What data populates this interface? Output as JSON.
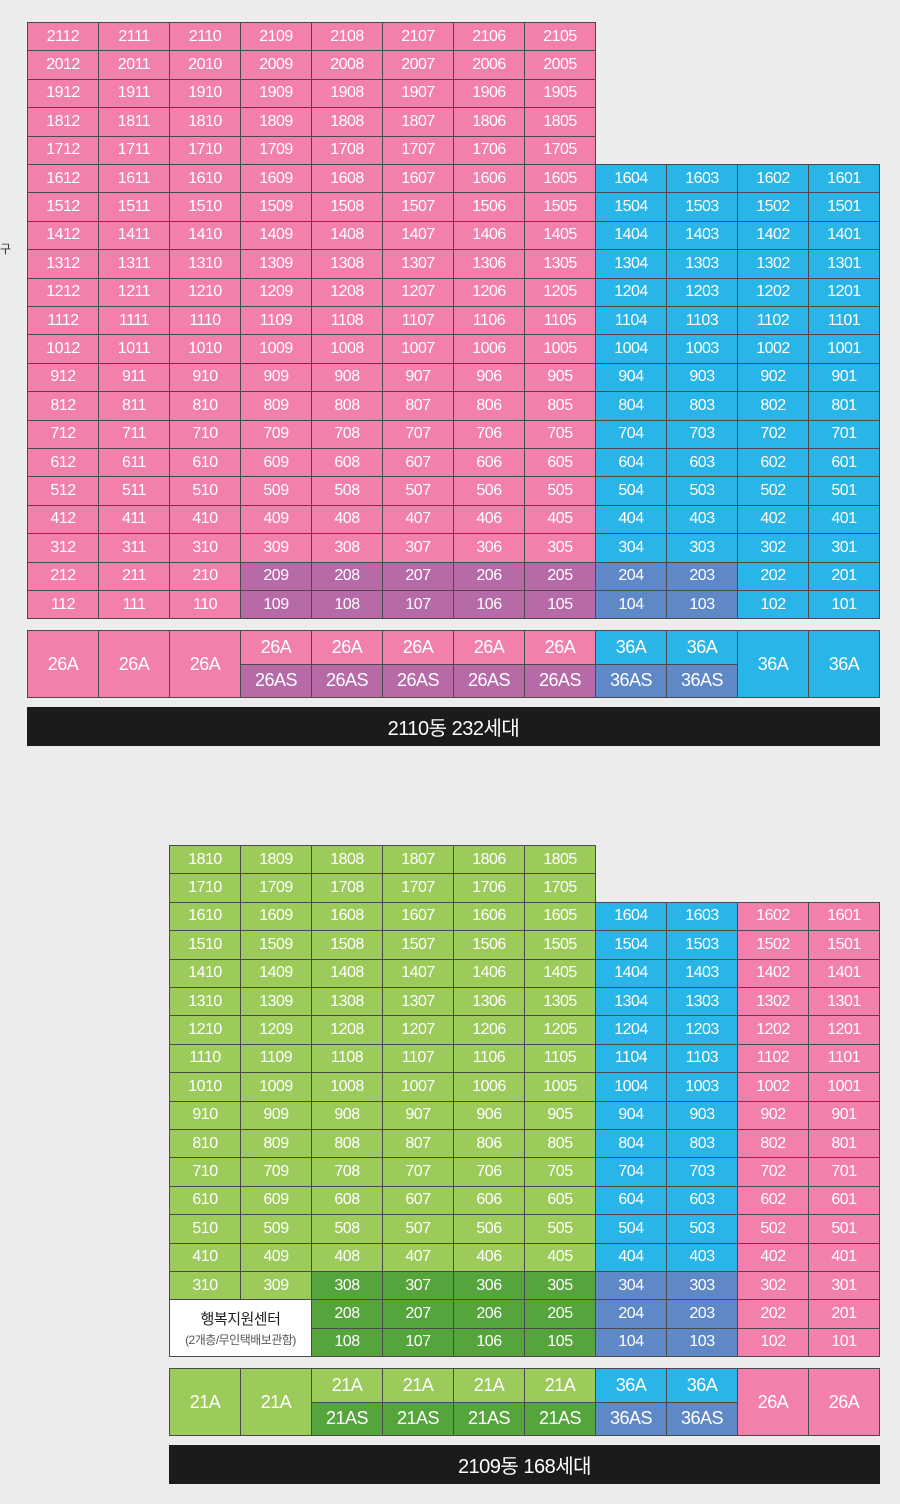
{
  "side_mark": "구",
  "colors": {
    "pink": "#f27fac",
    "purple": "#b76aa8",
    "blue": "#29b5e8",
    "dark_blue": "#5f88c7",
    "light_green": "#9ccb5b",
    "dark_green": "#55a53c",
    "footer": "#1b1b1b"
  },
  "building_2110": {
    "floors": 21,
    "caption": "2110동 232세대",
    "types": [
      {
        "top": "26A",
        "bottom": null,
        "color": "pink"
      },
      {
        "top": "26A",
        "bottom": null,
        "color": "pink"
      },
      {
        "top": "26A",
        "bottom": null,
        "color": "pink"
      },
      {
        "top": "26A",
        "bottom": "26AS",
        "color": "pink"
      },
      {
        "top": "26A",
        "bottom": "26AS",
        "color": "pink"
      },
      {
        "top": "26A",
        "bottom": "26AS",
        "color": "pink"
      },
      {
        "top": "26A",
        "bottom": "26AS",
        "color": "pink"
      },
      {
        "top": "26A",
        "bottom": "26AS",
        "color": "pink"
      },
      {
        "top": "36A",
        "bottom": "36AS",
        "color": "blue"
      },
      {
        "top": "36A",
        "bottom": "36AS",
        "color": "blue"
      },
      {
        "top": "36A",
        "bottom": null,
        "color": "blue"
      },
      {
        "top": "36A",
        "bottom": null,
        "color": "blue"
      }
    ]
  },
  "building_2109": {
    "floors": 18,
    "caption": "2109동 168세대",
    "support_center": {
      "name": "행복지원센터",
      "note": "(2개층/무인택배보관함)"
    },
    "types": [
      {
        "top": "21A",
        "bottom": null,
        "color": "light_green"
      },
      {
        "top": "21A",
        "bottom": null,
        "color": "light_green"
      },
      {
        "top": "21A",
        "bottom": "21AS",
        "color": "light_green"
      },
      {
        "top": "21A",
        "bottom": "21AS",
        "color": "light_green"
      },
      {
        "top": "21A",
        "bottom": "21AS",
        "color": "light_green"
      },
      {
        "top": "21A",
        "bottom": "21AS",
        "color": "light_green"
      },
      {
        "top": "36A",
        "bottom": "36AS",
        "color": "blue"
      },
      {
        "top": "36A",
        "bottom": "36AS",
        "color": "blue"
      },
      {
        "top": "26A",
        "bottom": null,
        "color": "pink"
      },
      {
        "top": "26A",
        "bottom": null,
        "color": "pink"
      }
    ]
  }
}
